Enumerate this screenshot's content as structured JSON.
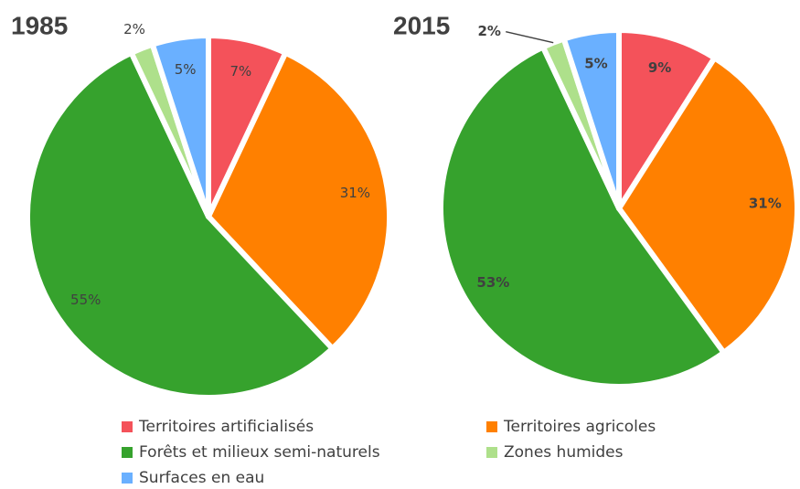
{
  "chart_data": [
    {
      "type": "pie",
      "title": "1985",
      "categories": [
        "Territoires artificialisés",
        "Territoires agricoles",
        "Forêts et milieux semi-naturels",
        "Zones humides",
        "Surfaces en eau"
      ],
      "values": [
        7,
        31,
        55,
        2,
        5
      ],
      "value_labels": [
        "7%",
        "31%",
        "55%",
        "2%",
        "5%"
      ],
      "colors": [
        "#f4525a",
        "#ff8000",
        "#36a22d",
        "#aee08b",
        "#6ab0ff"
      ]
    },
    {
      "type": "pie",
      "title": "2015",
      "categories": [
        "Territoires artificialisés",
        "Territoires agricoles",
        "Forêts et milieux semi-naturels",
        "Zones humides",
        "Surfaces en eau"
      ],
      "values": [
        9,
        31,
        53,
        2,
        5
      ],
      "value_labels": [
        "9%",
        "31%",
        "53%",
        "2%",
        "5%"
      ],
      "colors": [
        "#f4525a",
        "#ff8000",
        "#36a22d",
        "#aee08b",
        "#6ab0ff"
      ]
    }
  ]
}
